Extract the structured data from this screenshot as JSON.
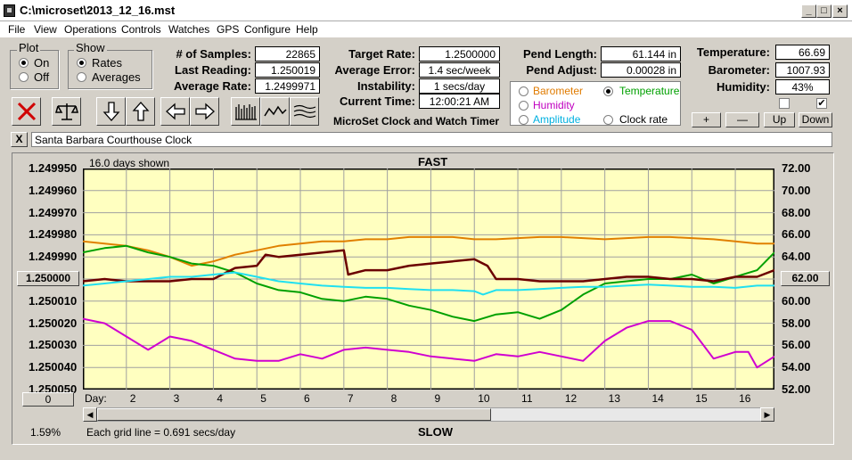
{
  "window": {
    "title": "C:\\microset\\2013_12_16.mst",
    "minimize": "_",
    "maximize": "□",
    "close": "×"
  },
  "menu": [
    "File",
    "View",
    "Operations",
    "Controls",
    "Watches",
    "GPS",
    "Configure",
    "Help"
  ],
  "plot_group": {
    "title": "Plot",
    "options": [
      "On",
      "Off"
    ],
    "selected": "On"
  },
  "show_group": {
    "title": "Show",
    "options": [
      "Rates",
      "Averages"
    ],
    "selected": "Rates"
  },
  "stats": {
    "samples_label": "# of Samples:",
    "samples": "22865",
    "last_reading_label": "Last Reading:",
    "last_reading": "1.250019",
    "average_rate_label": "Average Rate:",
    "average_rate": "1.2499971",
    "target_rate_label": "Target Rate:",
    "target_rate": "1.2500000",
    "average_error_label": "Average Error:",
    "average_error": "1.4 sec/week",
    "instability_label": "Instability:",
    "instability": "1 secs/day",
    "current_time_label": "Current Time:",
    "current_time": "12:00:21 AM",
    "pend_length_label": "Pend Length:",
    "pend_length": "61.144 in",
    "pend_adjust_label": "Pend Adjust:",
    "pend_adjust": "0.00028 in",
    "temperature_label": "Temperature:",
    "temperature": "66.69",
    "barometer_label": "Barometer:",
    "barometer": "1007.93",
    "humidity_label": "Humidity:",
    "humidity": "43%"
  },
  "app_name": "MicroSet Clock and Watch Timer",
  "aux_options": [
    {
      "label": "Barometer",
      "color": "#e07b00",
      "selected": false
    },
    {
      "label": "Temperature",
      "color": "#00a000",
      "selected": true
    },
    {
      "label": "Humidity",
      "color": "#c000c0",
      "selected": false
    },
    {
      "label": "Clock rate",
      "color": "#000000",
      "selected": false
    },
    {
      "label": "Amplitude",
      "color": "#00b0e0",
      "selected": false
    }
  ],
  "small_buttons": {
    "plus": "+",
    "minus": "—",
    "up": "Up",
    "down": "Down",
    "close_x": "X"
  },
  "clock_name": "Santa Barbara Courthouse Clock",
  "toolbar_icons": [
    "clear-icon",
    "balance-icon",
    "arrow-down-icon",
    "arrow-up-icon",
    "arrow-left-icon",
    "arrow-right-icon",
    "bars-icon",
    "wave-icon",
    "multiwave-icon"
  ],
  "chart_data": {
    "type": "line",
    "top_label": "FAST",
    "bottom_label": "SLOW",
    "days_shown": "16.0 days shown",
    "grid_note": "Each grid line = 0.691 secs/day",
    "percent": "1.59%",
    "x_prefix": "Day:",
    "x_ticks": [
      "2",
      "3",
      "4",
      "5",
      "6",
      "7",
      "8",
      "9",
      "10",
      "11",
      "12",
      "13",
      "14",
      "15",
      "16"
    ],
    "xlim": [
      1,
      16.9
    ],
    "left_axis": {
      "ticks": [
        "1.249950",
        "1.249960",
        "1.249970",
        "1.249980",
        "1.249990",
        "1.250000",
        "1.250010",
        "1.250020",
        "1.250030",
        "1.250040",
        "1.250050"
      ],
      "center_button": "1.250000",
      "bottom_button": "0",
      "ylim": [
        1.24995,
        1.25005
      ]
    },
    "right_axis": {
      "ticks": [
        "72.00",
        "70.00",
        "68.00",
        "66.00",
        "64.00",
        "62.00",
        "60.00",
        "58.00",
        "56.00",
        "54.00",
        "52.00"
      ],
      "center_button": "62.00",
      "ylim": [
        52,
        72
      ]
    },
    "series": [
      {
        "name": "Barometer",
        "color": "#e08000",
        "x": [
          1,
          1.5,
          2,
          2.5,
          3,
          3.5,
          4,
          4.5,
          5,
          5.5,
          6,
          6.5,
          7,
          7.5,
          8,
          8.5,
          9,
          9.5,
          10,
          10.5,
          11,
          11.5,
          12,
          12.5,
          13,
          13.5,
          14,
          14.5,
          15,
          15.5,
          16,
          16.5,
          16.9
        ],
        "values": [
          -1.7,
          -1.6,
          -1.5,
          -1.3,
          -1.0,
          -0.6,
          -0.8,
          -1.1,
          -1.3,
          -1.5,
          -1.6,
          -1.7,
          -1.7,
          -1.8,
          -1.8,
          -1.9,
          -1.9,
          -1.9,
          -1.8,
          -1.8,
          -1.85,
          -1.9,
          -1.9,
          -1.85,
          -1.8,
          -1.85,
          -1.9,
          -1.9,
          -1.85,
          -1.8,
          -1.7,
          -1.6,
          -1.6
        ]
      },
      {
        "name": "Temperature",
        "color": "#00a000",
        "x": [
          1,
          1.5,
          2,
          2.5,
          3,
          3.5,
          4,
          4.5,
          5,
          5.5,
          6,
          6.5,
          7,
          7.5,
          8,
          8.5,
          9,
          9.5,
          10,
          10.5,
          11,
          11.5,
          12,
          12.5,
          13,
          13.5,
          14,
          14.5,
          15,
          15.5,
          16,
          16.5,
          16.9
        ],
        "values": [
          -1.2,
          -1.4,
          -1.5,
          -1.2,
          -1.0,
          -0.7,
          -0.6,
          -0.3,
          0.2,
          0.5,
          0.6,
          0.9,
          1.0,
          0.8,
          0.9,
          1.2,
          1.4,
          1.7,
          1.9,
          1.6,
          1.5,
          1.8,
          1.4,
          0.7,
          0.2,
          0.1,
          0.0,
          0.0,
          -0.2,
          0.2,
          -0.1,
          -0.4,
          -1.2
        ]
      },
      {
        "name": "Clock rate",
        "color": "#6b0000",
        "x": [
          1,
          1.5,
          2,
          2.5,
          3,
          3.5,
          4,
          4.5,
          5,
          5.2,
          5.5,
          6,
          6.5,
          7,
          7.1,
          7.5,
          8,
          8.5,
          9,
          9.5,
          10,
          10.3,
          10.5,
          11,
          11.5,
          12,
          12.5,
          13,
          13.5,
          14,
          14.5,
          15,
          15.5,
          16,
          16.5,
          16.9
        ],
        "values": [
          0.1,
          0.0,
          0.1,
          0.1,
          0.1,
          0.0,
          0.0,
          -0.5,
          -0.6,
          -1.1,
          -1.0,
          -1.1,
          -1.2,
          -1.3,
          -0.2,
          -0.4,
          -0.4,
          -0.6,
          -0.7,
          -0.8,
          -0.9,
          -0.6,
          0.0,
          0.0,
          0.1,
          0.1,
          0.1,
          0.0,
          -0.1,
          -0.1,
          0.0,
          0.0,
          0.1,
          -0.1,
          -0.1,
          -0.4
        ]
      },
      {
        "name": "Amplitude",
        "color": "#20e0f0",
        "x": [
          1,
          1.5,
          2,
          2.5,
          3,
          3.5,
          4,
          4.5,
          5,
          5.5,
          6,
          6.5,
          7,
          7.5,
          8,
          8.5,
          9,
          9.5,
          10,
          10.2,
          10.5,
          11,
          11.5,
          12,
          12.5,
          13,
          13.5,
          14,
          14.5,
          15,
          15.5,
          16,
          16.5,
          16.9
        ],
        "values": [
          0.3,
          0.2,
          0.1,
          0.0,
          -0.1,
          -0.1,
          -0.2,
          -0.3,
          -0.1,
          0.1,
          0.2,
          0.3,
          0.35,
          0.4,
          0.4,
          0.45,
          0.5,
          0.5,
          0.55,
          0.7,
          0.5,
          0.5,
          0.45,
          0.4,
          0.35,
          0.35,
          0.3,
          0.25,
          0.3,
          0.35,
          0.35,
          0.4,
          0.3,
          0.3
        ]
      },
      {
        "name": "Humidity",
        "color": "#d000d0",
        "x": [
          1,
          1.5,
          2,
          2.5,
          3,
          3.5,
          4,
          4.5,
          5,
          5.5,
          6,
          6.5,
          7,
          7.5,
          8,
          8.5,
          9,
          9.5,
          10,
          10.5,
          11,
          11.5,
          12,
          12.5,
          13,
          13.5,
          14,
          14.5,
          15,
          15.5,
          16,
          16.3,
          16.5,
          16.9
        ],
        "values": [
          1.8,
          2.0,
          2.6,
          3.2,
          2.6,
          2.8,
          3.2,
          3.6,
          3.7,
          3.7,
          3.4,
          3.6,
          3.2,
          3.1,
          3.2,
          3.3,
          3.5,
          3.6,
          3.7,
          3.4,
          3.5,
          3.3,
          3.5,
          3.7,
          2.8,
          2.2,
          1.9,
          1.9,
          2.3,
          3.6,
          3.3,
          3.3,
          4.0,
          3.5
        ]
      }
    ]
  }
}
